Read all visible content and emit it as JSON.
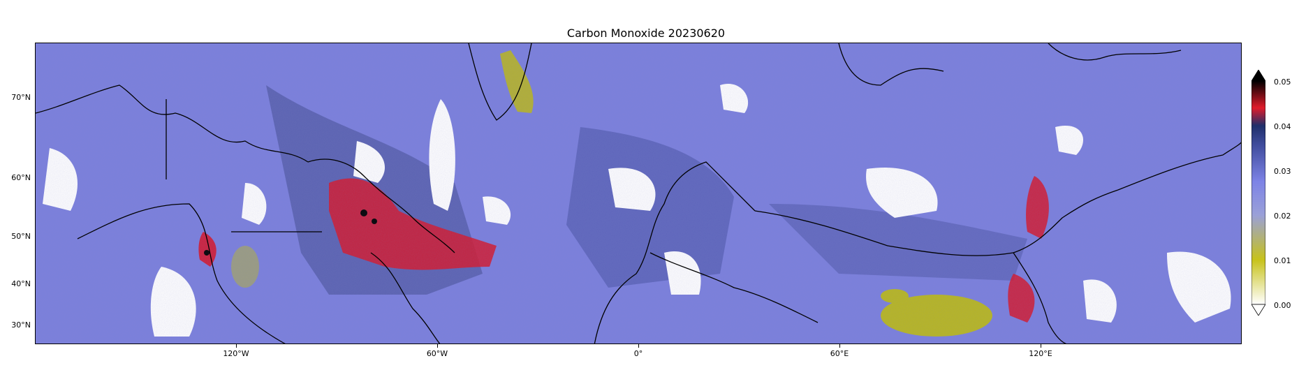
{
  "title": "Carbon Monoxide 20230620",
  "lat_ticks": [
    "70°N",
    "60°N",
    "50°N",
    "40°N",
    "30°N"
  ],
  "lon_ticks": [
    "120°W",
    "60°W",
    "0°",
    "60°E",
    "120°E"
  ],
  "colorbar": {
    "ticks": [
      "0.05",
      "0.04",
      "0.03",
      "0.02",
      "0.01",
      "0.00"
    ],
    "extend": "both",
    "colors": [
      "#ffffff",
      "#c7c21a",
      "#9aa0d8",
      "#7d83e6",
      "#3d4a9a",
      "#1f2f6a",
      "#e01b2a",
      "#000000"
    ]
  },
  "palette": {
    "background_co": "#7a7fdc",
    "low_co": "#b7b620",
    "high_co": "#d5162a",
    "very_high_co": "#000000",
    "no_data": "#ffffff",
    "coastline": "#000000"
  }
}
